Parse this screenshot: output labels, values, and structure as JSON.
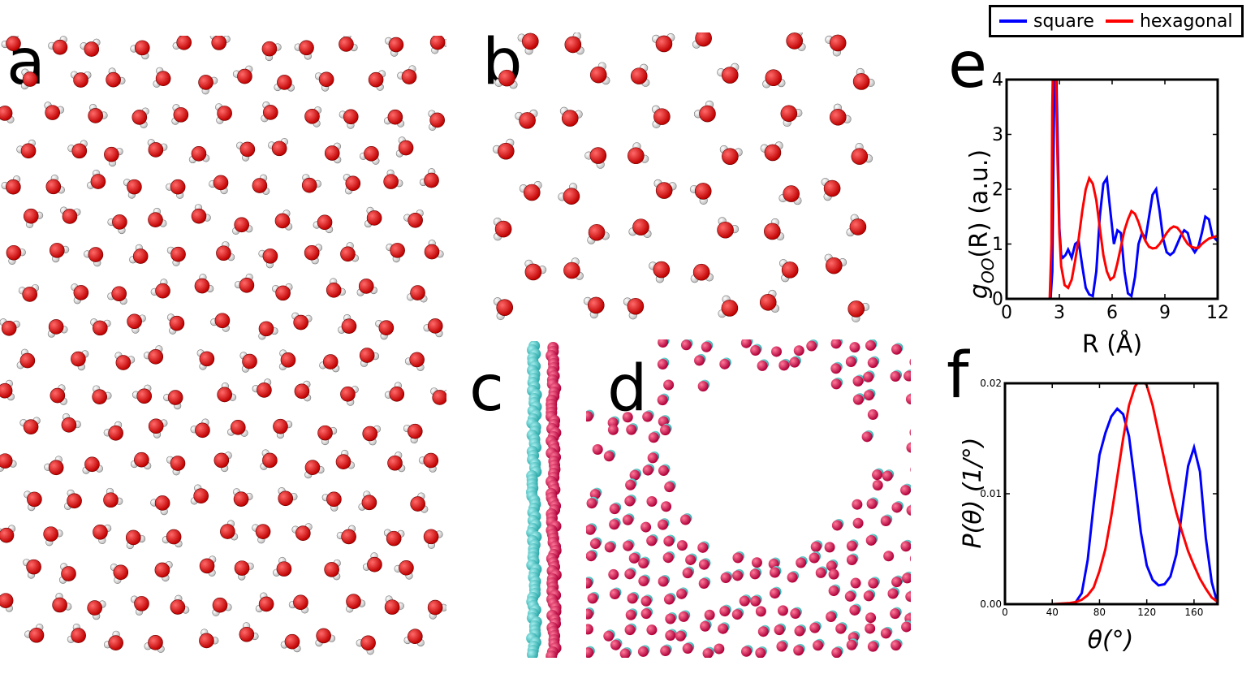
{
  "labels": {
    "a": "a",
    "b": "b",
    "c": "c",
    "d": "d",
    "e": "e",
    "f": "f"
  },
  "legend": {
    "entries": [
      {
        "name": "square",
        "color": "#0000ff"
      },
      {
        "name": "hexagonal",
        "color": "#ff0000"
      }
    ]
  },
  "colors": {
    "oxygen": "#e00000",
    "hydrogen": "#f4f4f4",
    "species_cyan": "#3cc4c4",
    "species_crimson": "#d0104a"
  },
  "chart_data": [
    {
      "id": "e",
      "type": "line",
      "xlabel": "R (Å)",
      "ylabel": "gOO(R) (a.u.)",
      "ylabel_main": "g",
      "ylabel_sub": "OO",
      "ylabel_rest": "(R) (a.u.)",
      "xlim": [
        0,
        12
      ],
      "ylim": [
        0,
        4
      ],
      "xticks": [
        "0",
        "3",
        "6",
        "9",
        "12"
      ],
      "yticks": [
        "0",
        "1",
        "2",
        "3",
        "4"
      ],
      "series": [
        {
          "name": "square",
          "color": "#0000ff",
          "x": [
            0,
            2.5,
            2.6,
            2.7,
            2.75,
            2.8,
            2.9,
            3.0,
            3.1,
            3.2,
            3.35,
            3.5,
            3.7,
            3.9,
            4.1,
            4.3,
            4.5,
            4.7,
            4.9,
            5.1,
            5.3,
            5.5,
            5.7,
            5.9,
            6.1,
            6.3,
            6.5,
            6.7,
            6.9,
            7.1,
            7.3,
            7.5,
            7.7,
            7.9,
            8.1,
            8.3,
            8.5,
            8.7,
            8.9,
            9.1,
            9.3,
            9.5,
            9.7,
            9.9,
            10.1,
            10.3,
            10.5,
            10.7,
            10.9,
            11.1,
            11.3,
            11.5,
            11.7,
            12
          ],
          "y": [
            0,
            0,
            0.5,
            3.6,
            4.5,
            4.5,
            3.0,
            1.3,
            0.8,
            0.75,
            0.8,
            0.9,
            0.75,
            1.0,
            1.05,
            0.6,
            0.2,
            0.08,
            0.05,
            0.5,
            1.5,
            2.1,
            2.2,
            1.6,
            1.0,
            1.25,
            1.2,
            0.5,
            0.1,
            0.05,
            0.4,
            1.0,
            1.2,
            1.1,
            1.5,
            1.9,
            2.0,
            1.6,
            1.1,
            0.85,
            0.8,
            0.85,
            1.0,
            1.15,
            1.25,
            1.2,
            0.95,
            0.85,
            0.95,
            1.2,
            1.5,
            1.45,
            1.15,
            1.05
          ]
        },
        {
          "name": "hexagonal",
          "color": "#ff0000",
          "x": [
            0,
            2.45,
            2.55,
            2.6,
            2.65,
            2.7,
            2.8,
            2.9,
            3.0,
            3.1,
            3.3,
            3.5,
            3.7,
            3.9,
            4.1,
            4.3,
            4.5,
            4.7,
            4.9,
            5.1,
            5.3,
            5.5,
            5.7,
            5.9,
            6.1,
            6.3,
            6.5,
            6.7,
            6.9,
            7.1,
            7.3,
            7.5,
            7.7,
            7.9,
            8.1,
            8.3,
            8.5,
            8.7,
            8.9,
            9.1,
            9.3,
            9.5,
            9.7,
            9.9,
            10.1,
            10.3,
            10.5,
            10.7,
            10.9,
            11.1,
            11.3,
            11.5,
            11.7,
            12
          ],
          "y": [
            0,
            0,
            1.0,
            3.5,
            4.5,
            4.5,
            4.0,
            2.5,
            1.2,
            0.6,
            0.25,
            0.2,
            0.35,
            0.7,
            1.1,
            1.6,
            2.0,
            2.2,
            2.1,
            1.8,
            1.3,
            0.8,
            0.5,
            0.35,
            0.4,
            0.65,
            0.95,
            1.25,
            1.45,
            1.6,
            1.55,
            1.4,
            1.2,
            1.05,
            0.95,
            0.92,
            0.93,
            1.0,
            1.1,
            1.2,
            1.28,
            1.32,
            1.3,
            1.22,
            1.1,
            1.0,
            0.95,
            0.93,
            0.93,
            1.0,
            1.05,
            1.1,
            1.12,
            1.15
          ]
        }
      ]
    },
    {
      "id": "f",
      "type": "line",
      "xlabel": "θ(°)",
      "ylabel": "P(θ) (1/°)",
      "xlim": [
        0,
        180
      ],
      "ylim": [
        0,
        0.02
      ],
      "xticks": [
        "0",
        "40",
        "80",
        "120",
        "160"
      ],
      "yticks": [
        "0.00",
        "0.01",
        "0.02"
      ],
      "series": [
        {
          "name": "square",
          "color": "#0000ff",
          "x": [
            0,
            55,
            60,
            65,
            70,
            75,
            80,
            85,
            90,
            95,
            100,
            105,
            110,
            115,
            120,
            125,
            130,
            135,
            140,
            145,
            150,
            155,
            160,
            165,
            170,
            175,
            180
          ],
          "y": [
            0,
            0,
            0.0002,
            0.001,
            0.004,
            0.009,
            0.0135,
            0.0155,
            0.017,
            0.0177,
            0.0172,
            0.0152,
            0.011,
            0.0065,
            0.0035,
            0.0022,
            0.0017,
            0.0018,
            0.0025,
            0.0045,
            0.0085,
            0.0125,
            0.0142,
            0.012,
            0.006,
            0.002,
            0
          ]
        },
        {
          "name": "hexagonal",
          "color": "#ff0000",
          "x": [
            0,
            25,
            40,
            55,
            60,
            65,
            70,
            75,
            80,
            85,
            90,
            95,
            100,
            105,
            110,
            115,
            120,
            125,
            130,
            135,
            140,
            145,
            150,
            155,
            160,
            165,
            170,
            175,
            180
          ],
          "y": [
            0,
            0,
            0,
            0.0001,
            0.0002,
            0.0004,
            0.0008,
            0.0015,
            0.003,
            0.005,
            0.008,
            0.0115,
            0.015,
            0.018,
            0.0197,
            0.0205,
            0.0198,
            0.018,
            0.0155,
            0.013,
            0.0105,
            0.0083,
            0.0065,
            0.0048,
            0.0035,
            0.0023,
            0.0014,
            0.0006,
            0.0002
          ]
        }
      ]
    }
  ]
}
